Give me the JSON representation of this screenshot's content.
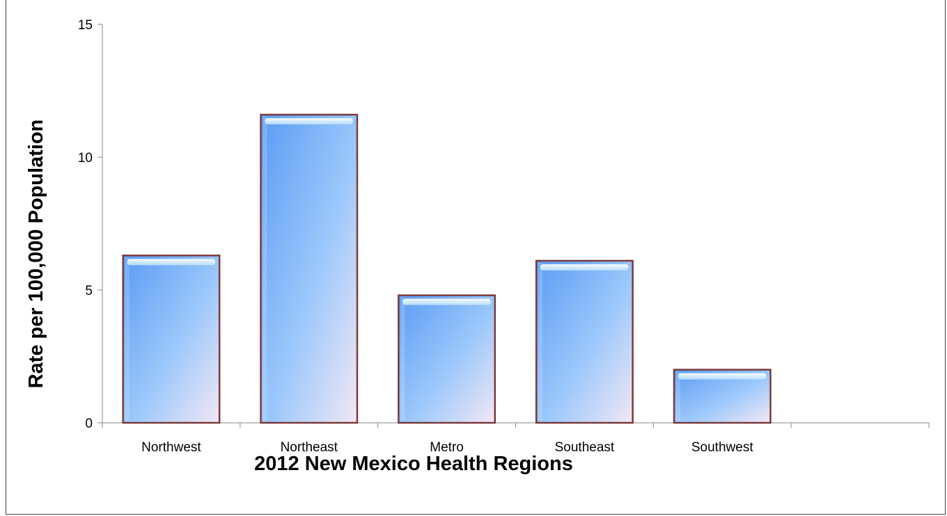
{
  "chart_data": {
    "type": "bar",
    "categories": [
      "Northwest",
      "Northeast",
      "Metro",
      "Southeast",
      "Southwest",
      ""
    ],
    "values": [
      6.3,
      11.6,
      4.8,
      6.1,
      2.0,
      null
    ],
    "title": "",
    "xlabel": "2012 New Mexico Health Regions",
    "ylabel": "Rate per 100,000 Population",
    "ylim": [
      0,
      15
    ],
    "yticks": [
      0,
      5,
      10,
      15
    ],
    "grid": false,
    "legend": "none",
    "colors": {
      "bar_top": "#5f9ff5",
      "bar_bottom": "#eaeaf7",
      "bar_border": "#7a3b3b",
      "axis": "#868686"
    }
  }
}
